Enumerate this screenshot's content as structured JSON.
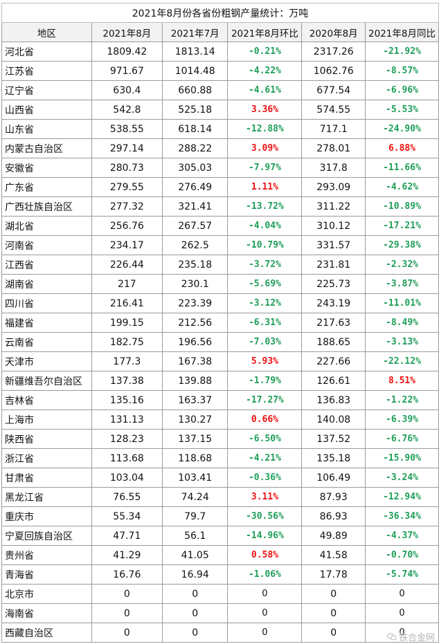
{
  "title": "2021年8月份各省份粗钢产量统计：万吨",
  "headers": [
    "地区",
    "2021年8月",
    "2021年7月",
    "2021年8月环比",
    "2020年8月",
    "2021年8月同比"
  ],
  "colors": {
    "up": "#ee1111",
    "down": "#1e9e58",
    "neutral": "#111111"
  },
  "rows": [
    {
      "region": "河北省",
      "aug2021": "1809.42",
      "jul2021": "1813.14",
      "mom": "-0.21%",
      "aug2020": "2317.26",
      "yoy": "-21.92%"
    },
    {
      "region": "江苏省",
      "aug2021": "971.67",
      "jul2021": "1014.48",
      "mom": "-4.22%",
      "aug2020": "1062.76",
      "yoy": "-8.57%"
    },
    {
      "region": "辽宁省",
      "aug2021": "630.4",
      "jul2021": "660.88",
      "mom": "-4.61%",
      "aug2020": "677.54",
      "yoy": "-6.96%"
    },
    {
      "region": "山西省",
      "aug2021": "542.8",
      "jul2021": "525.18",
      "mom": "3.36%",
      "aug2020": "574.55",
      "yoy": "-5.53%"
    },
    {
      "region": "山东省",
      "aug2021": "538.55",
      "jul2021": "618.14",
      "mom": "-12.88%",
      "aug2020": "717.1",
      "yoy": "-24.90%"
    },
    {
      "region": "内蒙古自治区",
      "aug2021": "297.14",
      "jul2021": "288.22",
      "mom": "3.09%",
      "aug2020": "278.01",
      "yoy": "6.88%"
    },
    {
      "region": "安徽省",
      "aug2021": "280.73",
      "jul2021": "305.03",
      "mom": "-7.97%",
      "aug2020": "317.8",
      "yoy": "-11.66%"
    },
    {
      "region": "广东省",
      "aug2021": "279.55",
      "jul2021": "276.49",
      "mom": "1.11%",
      "aug2020": "293.09",
      "yoy": "-4.62%"
    },
    {
      "region": "广西壮族自治区",
      "aug2021": "277.32",
      "jul2021": "321.41",
      "mom": "-13.72%",
      "aug2020": "311.22",
      "yoy": "-10.89%"
    },
    {
      "region": "湖北省",
      "aug2021": "256.76",
      "jul2021": "267.57",
      "mom": "-4.04%",
      "aug2020": "310.12",
      "yoy": "-17.21%"
    },
    {
      "region": "河南省",
      "aug2021": "234.17",
      "jul2021": "262.5",
      "mom": "-10.79%",
      "aug2020": "331.57",
      "yoy": "-29.38%"
    },
    {
      "region": "江西省",
      "aug2021": "226.44",
      "jul2021": "235.18",
      "mom": "-3.72%",
      "aug2020": "231.81",
      "yoy": "-2.32%"
    },
    {
      "region": "湖南省",
      "aug2021": "217",
      "jul2021": "230.1",
      "mom": "-5.69%",
      "aug2020": "225.73",
      "yoy": "-3.87%"
    },
    {
      "region": "四川省",
      "aug2021": "216.41",
      "jul2021": "223.39",
      "mom": "-3.12%",
      "aug2020": "243.19",
      "yoy": "-11.01%"
    },
    {
      "region": "福建省",
      "aug2021": "199.15",
      "jul2021": "212.56",
      "mom": "-6.31%",
      "aug2020": "217.63",
      "yoy": "-8.49%"
    },
    {
      "region": "云南省",
      "aug2021": "182.75",
      "jul2021": "196.56",
      "mom": "-7.03%",
      "aug2020": "188.65",
      "yoy": "-3.13%"
    },
    {
      "region": "天津市",
      "aug2021": "177.3",
      "jul2021": "167.38",
      "mom": "5.93%",
      "aug2020": "227.66",
      "yoy": "-22.12%"
    },
    {
      "region": "新疆维吾尔自治区",
      "aug2021": "137.38",
      "jul2021": "139.88",
      "mom": "-1.79%",
      "aug2020": "126.61",
      "yoy": "8.51%"
    },
    {
      "region": "吉林省",
      "aug2021": "135.16",
      "jul2021": "163.37",
      "mom": "-17.27%",
      "aug2020": "136.83",
      "yoy": "-1.22%"
    },
    {
      "region": "上海市",
      "aug2021": "131.13",
      "jul2021": "130.27",
      "mom": "0.66%",
      "aug2020": "140.08",
      "yoy": "-6.39%"
    },
    {
      "region": "陕西省",
      "aug2021": "128.23",
      "jul2021": "137.15",
      "mom": "-6.50%",
      "aug2020": "137.52",
      "yoy": "-6.76%"
    },
    {
      "region": "浙江省",
      "aug2021": "113.68",
      "jul2021": "118.68",
      "mom": "-4.21%",
      "aug2020": "135.18",
      "yoy": "-15.90%"
    },
    {
      "region": "甘肃省",
      "aug2021": "103.04",
      "jul2021": "103.41",
      "mom": "-0.36%",
      "aug2020": "106.49",
      "yoy": "-3.24%"
    },
    {
      "region": "黑龙江省",
      "aug2021": "76.55",
      "jul2021": "74.24",
      "mom": "3.11%",
      "aug2020": "87.93",
      "yoy": "-12.94%"
    },
    {
      "region": "重庆市",
      "aug2021": "55.34",
      "jul2021": "79.7",
      "mom": "-30.56%",
      "aug2020": "86.93",
      "yoy": "-36.34%"
    },
    {
      "region": "宁夏回族自治区",
      "aug2021": "47.71",
      "jul2021": "56.1",
      "mom": "-14.96%",
      "aug2020": "49.89",
      "yoy": "-4.37%"
    },
    {
      "region": "贵州省",
      "aug2021": "41.29",
      "jul2021": "41.05",
      "mom": "0.58%",
      "aug2020": "41.58",
      "yoy": "-0.70%"
    },
    {
      "region": "青海省",
      "aug2021": "16.76",
      "jul2021": "16.94",
      "mom": "-1.06%",
      "aug2020": "17.78",
      "yoy": "-5.74%"
    },
    {
      "region": "北京市",
      "aug2021": "0",
      "jul2021": "0",
      "mom": "0",
      "aug2020": "0",
      "yoy": "0"
    },
    {
      "region": "海南省",
      "aug2021": "0",
      "jul2021": "0",
      "mom": "0",
      "aug2020": "0",
      "yoy": "0"
    },
    {
      "region": "西藏自治区",
      "aug2021": "0",
      "jul2021": "0",
      "mom": "0",
      "aug2020": "0",
      "yoy": "0"
    }
  ],
  "watermark": {
    "text": "铁合金网",
    "icon": "wechat-icon"
  }
}
